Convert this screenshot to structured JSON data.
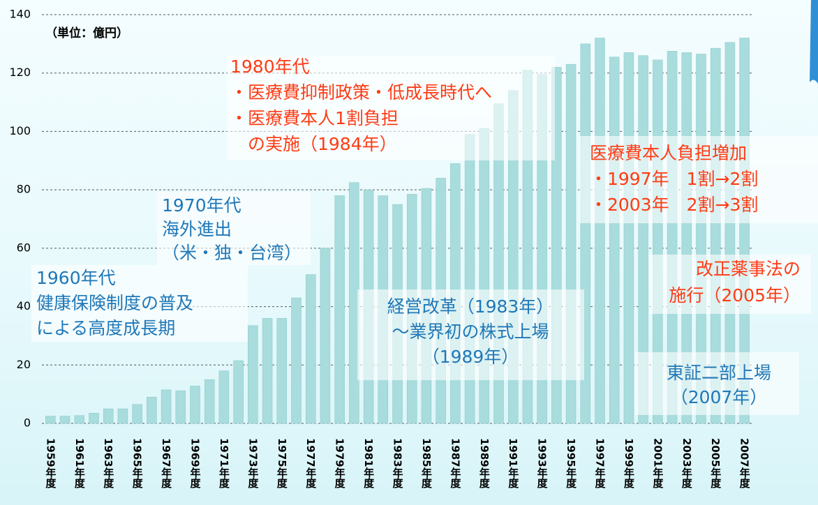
{
  "chart_data": {
    "type": "bar",
    "unit_label": "（単位：億円）",
    "categories": [
      "1959年度",
      null,
      "1961年度",
      null,
      "1963年度",
      null,
      "1965年度",
      null,
      "1967年度",
      null,
      "1969年度",
      null,
      "1971年度",
      null,
      "1973年度",
      null,
      "1975年度",
      null,
      "1977年度",
      null,
      "1979年度",
      null,
      "1981年度",
      null,
      "1983年度",
      null,
      "1985年度",
      null,
      "1987年度",
      null,
      "1989年度",
      null,
      "1991年度",
      null,
      "1993年度",
      null,
      "1995年度",
      null,
      "1997年度",
      null,
      "1999年度",
      null,
      "2001年度",
      null,
      "2003年度",
      null,
      "2005年度",
      null,
      "2007年度"
    ],
    "values": [
      2.5,
      2.5,
      2.7,
      3.5,
      5,
      5,
      6.5,
      9,
      11.5,
      11.2,
      12.8,
      15,
      18,
      21.5,
      33.5,
      36,
      36,
      43,
      51,
      60,
      78,
      82.5,
      80,
      78,
      75,
      78.5,
      80.5,
      84,
      89,
      99,
      101,
      109.5,
      114,
      121,
      119.5,
      122,
      123,
      130,
      132,
      125.5,
      127,
      126,
      124.5,
      127.5,
      127,
      126.5,
      128.5,
      130.5,
      132
    ],
    "color": "#a9dcdc",
    "ylim": [
      0,
      140
    ],
    "yticks": [
      0,
      20,
      40,
      60,
      80,
      100,
      120,
      140
    ],
    "grid": true,
    "annotations": [
      {
        "color": "#ff3b14",
        "lines": [
          "1980年代",
          "・医療費抑制政策・低成長時代へ",
          "・医療費本人1割負担",
          "　の実施（1984年）"
        ]
      },
      {
        "color": "#1f78b8",
        "lines": [
          "1970年代",
          "海外進出",
          "（米・独・台湾）"
        ]
      },
      {
        "color": "#1f78b8",
        "lines": [
          "1960年代",
          "健康保険制度の普及",
          "による高度成長期"
        ]
      },
      {
        "color": "#1f78b8",
        "lines": [
          "経営改革（1983年）",
          "～業界初の株式上場",
          "（1989年）"
        ]
      },
      {
        "color": "#ff3b14",
        "lines": [
          "医療費本人負担増加",
          "・1997年　1割→2割",
          "・2003年　2割→3割"
        ]
      },
      {
        "color": "#ff3b14",
        "lines": [
          "改正薬事法の",
          "施行（2005年）"
        ]
      },
      {
        "color": "#1f78b8",
        "lines": [
          "東証二部上場",
          "（2007年）"
        ]
      }
    ]
  }
}
